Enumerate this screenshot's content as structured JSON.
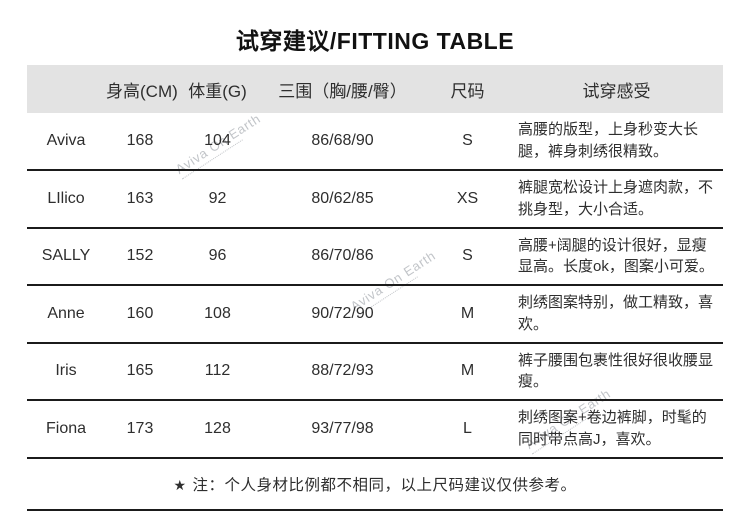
{
  "title": "试穿建议/FITTING TABLE",
  "table": {
    "headers": [
      "",
      "身高(CM)",
      "体重(G)",
      "三围（胸/腰/臀）",
      "尺码",
      "试穿感受"
    ],
    "rows": [
      {
        "name": "Aviva",
        "height": "168",
        "weight": "104",
        "measurements": "86/68/90",
        "size": "S",
        "feedback": "高腰的版型，上身秒变大长腿，裤身刺绣很精致。"
      },
      {
        "name": "LIlico",
        "height": "163",
        "weight": "92",
        "measurements": "80/62/85",
        "size": "XS",
        "feedback": "裤腿宽松设计上身遮肉款，不挑身型，大小合适。"
      },
      {
        "name": "SALLY",
        "height": "152",
        "weight": "96",
        "measurements": "86/70/86",
        "size": "S",
        "feedback": "高腰+阔腿的设计很好，显瘦显高。长度ok，图案小可爱。"
      },
      {
        "name": "Anne",
        "height": "160",
        "weight": "108",
        "measurements": "90/72/90",
        "size": "M",
        "feedback": "刺绣图案特别，做工精致，喜欢。"
      },
      {
        "name": "Iris",
        "height": "165",
        "weight": "112",
        "measurements": "88/72/93",
        "size": "M",
        "feedback": "裤子腰围包裹性很好很收腰显瘦。"
      },
      {
        "name": "Fiona",
        "height": "173",
        "weight": "128",
        "measurements": "93/77/98",
        "size": "L",
        "feedback": "刺绣图案+卷边裤脚，时髦的同时带点高J，喜欢。"
      }
    ]
  },
  "note": {
    "star": "★",
    "text": "注：个人身材比例都不相同，以上尺码建议仅供参考。"
  },
  "watermark": {
    "text": "Aviva On Earth"
  },
  "colors": {
    "header_bg": "#e3e3e3",
    "line": "#1b1b1b",
    "text": "#2e2e2e",
    "title": "#111111",
    "watermark": "#c2c5c9"
  }
}
